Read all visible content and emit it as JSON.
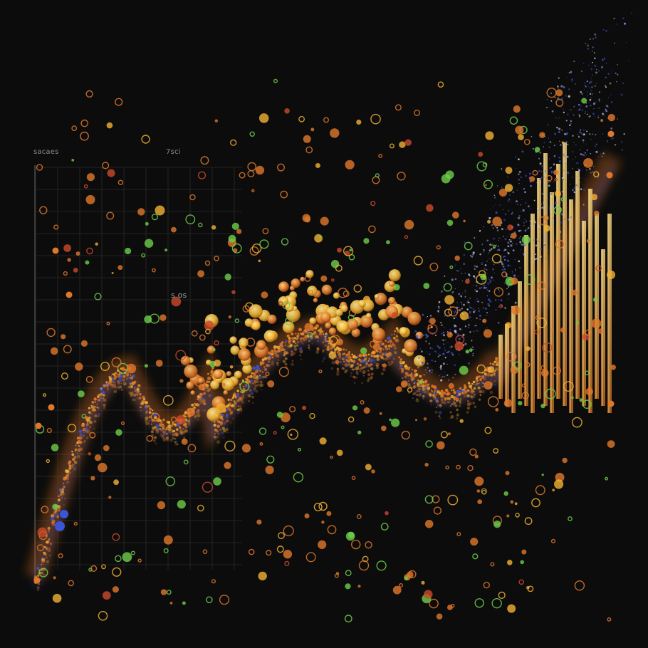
{
  "labels": {
    "top_left": "sacaes",
    "top_mid": "7sci",
    "mid_text": "s os"
  },
  "colors": {
    "background": "#0c0c0c",
    "orange": "#e0782a",
    "amber": "#f2b233",
    "green": "#6ecf4a",
    "blue": "#3a55d8",
    "grid": "#2a2a2a"
  }
}
